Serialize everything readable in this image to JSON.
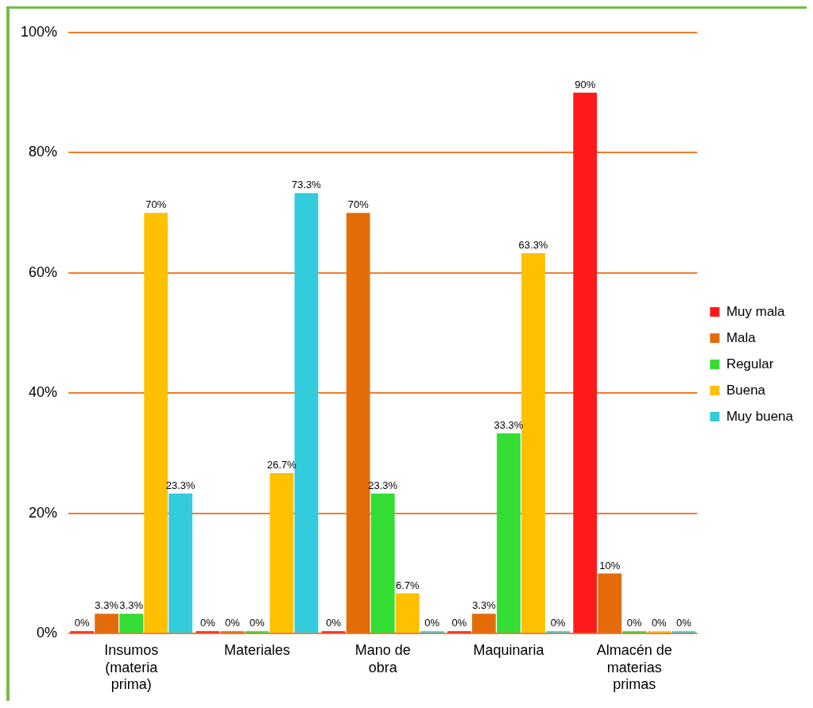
{
  "chart_data": {
    "type": "bar",
    "categories": [
      "Insumos (materia prima)",
      "Materiales",
      "Mano de obra",
      "Maquinaria",
      "Almacén de materias primas"
    ],
    "series": [
      {
        "name": "Muy mala",
        "color": "#ff1a1a",
        "values": [
          0,
          0,
          0,
          0,
          90
        ],
        "value_labels": [
          "0%",
          "0%",
          "0%",
          "0%",
          "90%"
        ]
      },
      {
        "name": "Mala",
        "color": "#e36c09",
        "values": [
          3.3,
          0,
          70,
          3.3,
          10
        ],
        "value_labels": [
          "3.3%",
          "0%",
          "70%",
          "3.3%",
          "10%"
        ]
      },
      {
        "name": "Regular",
        "color": "#33dd33",
        "values": [
          3.3,
          0,
          23.3,
          33.3,
          0
        ],
        "value_labels": [
          "3.3%",
          "0%",
          "23.3%",
          "33.3%",
          "0%"
        ]
      },
      {
        "name": "Buena",
        "color": "#ffc000",
        "values": [
          70,
          26.7,
          6.7,
          63.3,
          0
        ],
        "value_labels": [
          "70%",
          "26.7%",
          "6.7%",
          "63.3%",
          "0%"
        ]
      },
      {
        "name": "Muy buena",
        "color": "#33ccdd",
        "values": [
          23.3,
          73.3,
          0,
          0,
          0
        ],
        "value_labels": [
          "23.3%",
          "73.3%",
          "0%",
          "0%",
          "0%"
        ]
      }
    ],
    "ylim": [
      0,
      100
    ],
    "yticks": [
      {
        "value": 0,
        "label": "0%"
      },
      {
        "value": 20,
        "label": "20%"
      },
      {
        "value": 40,
        "label": "40%"
      },
      {
        "value": 60,
        "label": "60%"
      },
      {
        "value": 80,
        "label": "80%"
      },
      {
        "value": 100,
        "label": "100%"
      }
    ],
    "grid": "y",
    "legend": "right"
  }
}
